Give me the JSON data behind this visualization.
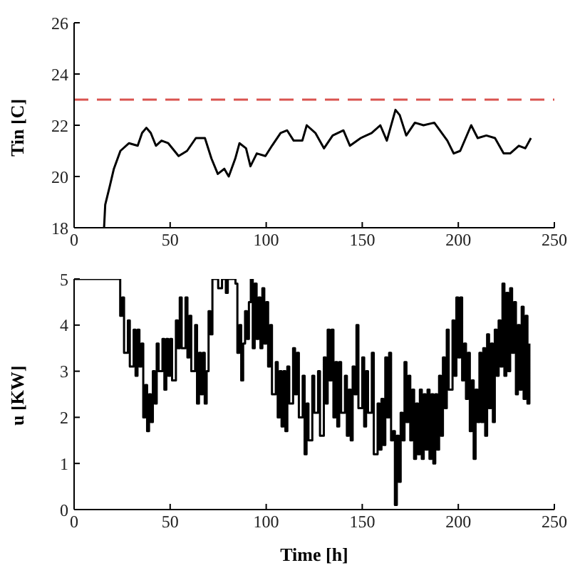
{
  "chart_data": [
    {
      "type": "line",
      "ylabel": "Tin [C]",
      "xlim": [
        0,
        250
      ],
      "xticks": [
        0,
        50,
        100,
        150,
        200,
        250
      ],
      "ylim": [
        18,
        26
      ],
      "yticks": [
        18,
        20,
        22,
        24,
        26
      ],
      "grid": false,
      "legend": false,
      "x": [
        15.6,
        16.2,
        18.5,
        20.7,
        24.1,
        28.6,
        33.1,
        35.4,
        37.6,
        39.9,
        42.6,
        45.5,
        49,
        54.4,
        58.8,
        63.4,
        68.1,
        71.5,
        74.8,
        78.2,
        80.5,
        83.9,
        86.1,
        89.5,
        91.8,
        95.1,
        99.6,
        103,
        107.5,
        110.9,
        114.3,
        118.8,
        121.1,
        125.6,
        130.1,
        134.6,
        140.2,
        143.6,
        149.2,
        154.9,
        159.4,
        162.8,
        167.3,
        169.5,
        172.9,
        177.4,
        181.9,
        187.5,
        194.3,
        197.6,
        201,
        206.7,
        210.1,
        214.6,
        219.1,
        223.6,
        227,
        231.5,
        234.9,
        237.8
      ],
      "series": [
        {
          "color": "#000000",
          "values": [
            18,
            18.9,
            19.6,
            20.3,
            21.0,
            21.3,
            21.2,
            21.7,
            21.9,
            21.7,
            21.2,
            21.4,
            21.3,
            20.8,
            21.0,
            21.5,
            21.5,
            20.7,
            20.1,
            20.3,
            20.0,
            20.7,
            21.3,
            21.1,
            20.4,
            20.9,
            20.8,
            21.2,
            21.7,
            21.8,
            21.4,
            21.4,
            22.0,
            21.7,
            21.1,
            21.6,
            21.8,
            21.2,
            21.5,
            21.7,
            22.0,
            21.4,
            22.6,
            22.4,
            21.6,
            22.1,
            22.0,
            22.1,
            21.4,
            20.9,
            21.0,
            22.0,
            21.5,
            21.6,
            21.5,
            20.9,
            20.9,
            21.2,
            21.1,
            21.5
          ]
        }
      ],
      "ref_lines": [
        {
          "axis": "y",
          "value": 23,
          "color": "#d9534f",
          "line_style": "dashed"
        }
      ]
    },
    {
      "type": "step",
      "xlabel": "Time [h]",
      "ylabel": "u [KW]",
      "xlim": [
        0,
        250
      ],
      "xticks": [
        0,
        50,
        100,
        150,
        200,
        250
      ],
      "ylim": [
        0,
        5
      ],
      "yticks": [
        0,
        1,
        2,
        3,
        4,
        5
      ],
      "grid": false,
      "legend": false,
      "x": [
        0,
        22,
        24,
        25,
        26,
        28,
        29,
        31,
        32,
        33,
        34,
        35,
        36,
        37,
        38,
        39,
        40,
        41,
        42,
        43,
        44,
        46,
        47,
        48,
        49,
        50,
        51,
        53,
        54,
        55,
        56,
        58,
        59,
        60,
        61,
        63,
        64,
        65,
        66,
        67,
        68,
        69,
        70,
        71,
        72,
        75,
        77,
        79,
        80,
        82,
        84,
        85,
        86,
        87,
        88,
        89,
        90,
        91,
        92,
        93,
        94,
        95,
        96,
        97,
        98,
        99,
        100,
        101,
        102,
        103,
        105,
        106,
        107,
        108,
        109,
        110,
        111,
        112,
        114,
        115,
        116,
        117,
        119,
        120,
        121,
        122,
        124,
        125,
        127,
        128,
        130,
        131,
        132,
        133,
        134,
        135,
        136,
        137,
        138,
        139,
        141,
        142,
        143,
        144,
        145,
        146,
        147,
        148,
        150,
        151,
        152,
        153,
        155,
        156,
        158,
        159,
        160,
        161,
        162,
        163,
        164,
        165,
        166,
        167,
        168,
        169,
        170,
        171,
        172,
        173,
        174,
        175,
        176,
        177,
        178,
        179,
        180,
        181,
        182,
        183,
        184,
        185,
        186,
        187,
        188,
        189,
        190,
        191,
        192,
        193,
        194,
        195,
        197,
        198,
        199,
        200,
        201,
        202,
        203,
        204,
        205,
        206,
        207,
        208,
        209,
        210,
        211,
        212,
        213,
        214,
        215,
        216,
        217,
        218,
        219,
        220,
        221,
        222,
        223,
        224,
        225,
        226,
        227,
        228,
        229,
        230,
        231,
        232,
        233,
        234,
        235,
        236,
        237
      ],
      "series": [
        {
          "color": "#000000",
          "values": [
            5,
            5,
            4.2,
            4.6,
            3.4,
            4.1,
            3.1,
            3.9,
            2.9,
            3.9,
            3.1,
            3.6,
            2.0,
            2.7,
            1.7,
            2.5,
            1.9,
            3.0,
            2.3,
            3.6,
            3.0,
            3.7,
            2.6,
            3.7,
            2.9,
            3.7,
            2.8,
            4.1,
            3.5,
            4.6,
            3.5,
            4.6,
            3.3,
            4.2,
            3.0,
            4.0,
            2.3,
            3.4,
            2.5,
            3.4,
            2.3,
            3.0,
            4.3,
            3.8,
            5,
            4.8,
            5,
            4.7,
            5,
            5,
            4.9,
            3.4,
            4.0,
            2.8,
            3.6,
            4.3,
            3.7,
            4.5,
            5.0,
            3.5,
            4.9,
            3.7,
            4.6,
            3.5,
            4.8,
            3.6,
            4.5,
            3.1,
            4.0,
            2.5,
            3.2,
            2.0,
            3.0,
            1.8,
            3.0,
            1.7,
            3.1,
            2.3,
            3.5,
            2.5,
            3.4,
            2.0,
            2.9,
            1.2,
            2.3,
            1.5,
            2.9,
            2.1,
            3.0,
            1.6,
            3.3,
            2.3,
            3.9,
            2.8,
            3.9,
            2.0,
            3.2,
            1.8,
            3.2,
            2.1,
            2.9,
            1.6,
            2.6,
            1.5,
            3.1,
            2.5,
            4.0,
            2.2,
            3.3,
            1.8,
            3.0,
            2.1,
            3.4,
            1.2,
            2.3,
            1.3,
            2.4,
            1.4,
            3.3,
            2.0,
            3.4,
            1.5,
            1.7,
            0.1,
            1.6,
            0.6,
            2.1,
            1.5,
            3.2,
            1.9,
            2.9,
            1.5,
            2.6,
            1.1,
            2.3,
            1.2,
            2.6,
            1.1,
            2.5,
            1.3,
            2.6,
            1.1,
            2.5,
            1.0,
            2.5,
            1.3,
            2.9,
            1.6,
            3.3,
            2.2,
            3.9,
            2.6,
            4.1,
            2.9,
            4.6,
            3.3,
            4.6,
            2.8,
            3.6,
            2.4,
            3.4,
            1.7,
            2.8,
            1.1,
            2.6,
            1.9,
            3.4,
            1.9,
            3.5,
            1.6,
            3.8,
            2.2,
            3.6,
            1.9,
            3.9,
            2.9,
            4.1,
            3.1,
            4.9,
            2.9,
            4.7,
            3.0,
            4.8,
            3.4,
            4.5,
            2.5,
            4.0,
            2.6,
            4.4,
            2.4,
            4.2,
            2.3,
            3.6
          ]
        }
      ]
    }
  ]
}
